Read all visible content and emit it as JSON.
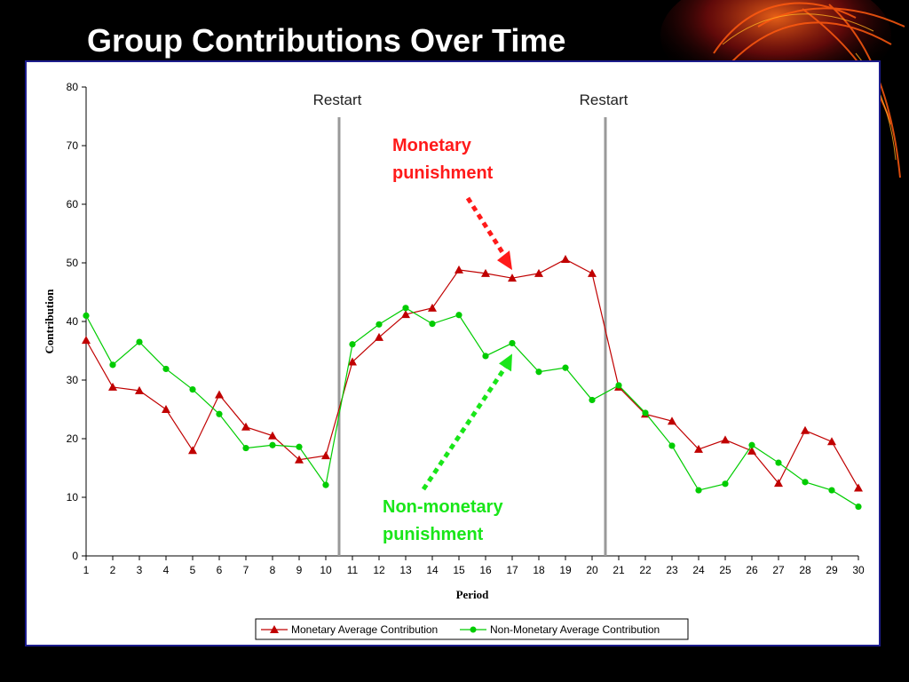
{
  "slide": {
    "title": "Group Contributions Over Time"
  },
  "colors": {
    "background": "#000000",
    "monetary": "#c00000",
    "non_monetary": "#00cc00",
    "annotation_red": "#ff1a1a",
    "annotation_green": "#19e619",
    "restart_line": "#999999"
  },
  "chart_data": {
    "type": "line",
    "title": "",
    "xlabel": "Period",
    "ylabel": "Contribution",
    "x": [
      1,
      2,
      3,
      4,
      5,
      6,
      7,
      8,
      9,
      10,
      11,
      12,
      13,
      14,
      15,
      16,
      17,
      18,
      19,
      20,
      21,
      22,
      23,
      24,
      25,
      26,
      27,
      28,
      29,
      30
    ],
    "xlim": [
      1,
      30
    ],
    "ylim": [
      0,
      80
    ],
    "yticks": [
      0,
      10,
      20,
      30,
      40,
      50,
      60,
      70,
      80
    ],
    "grid": false,
    "legend_position": "bottom",
    "series": [
      {
        "name": "Monetary Average Contribution",
        "marker": "triangle",
        "color": "#c00000",
        "values": [
          36.8,
          28.8,
          28.2,
          25.0,
          18.0,
          27.5,
          22.0,
          20.5,
          16.4,
          17.1,
          33.1,
          37.3,
          41.2,
          42.3,
          48.8,
          48.2,
          47.4,
          48.2,
          50.6,
          48.2,
          28.8,
          24.2,
          23.0,
          18.2,
          19.8,
          17.9,
          12.4,
          21.4,
          19.5,
          11.6
        ]
      },
      {
        "name": "Non-Monetary Average Contribution",
        "marker": "circle",
        "color": "#00cc00",
        "values": [
          41.0,
          32.6,
          36.5,
          31.9,
          28.4,
          24.2,
          18.4,
          18.9,
          18.6,
          12.1,
          36.1,
          39.5,
          42.3,
          39.6,
          41.1,
          34.1,
          36.3,
          31.4,
          32.1,
          26.6,
          29.1,
          24.4,
          18.8,
          11.2,
          12.3,
          18.9,
          15.9,
          12.6,
          11.2,
          8.4
        ]
      }
    ],
    "reference_lines": [
      {
        "x": 10.5,
        "label": "Restart"
      },
      {
        "x": 20.5,
        "label": "Restart"
      }
    ],
    "annotations": [
      {
        "text_lines": [
          "Monetary",
          "punishment"
        ],
        "color": "red",
        "points_to_x": 17,
        "series": "Monetary Average Contribution"
      },
      {
        "text_lines": [
          "Non-monetary",
          "punishment"
        ],
        "color": "green",
        "points_to_x": 17,
        "series": "Non-Monetary Average Contribution"
      }
    ]
  }
}
